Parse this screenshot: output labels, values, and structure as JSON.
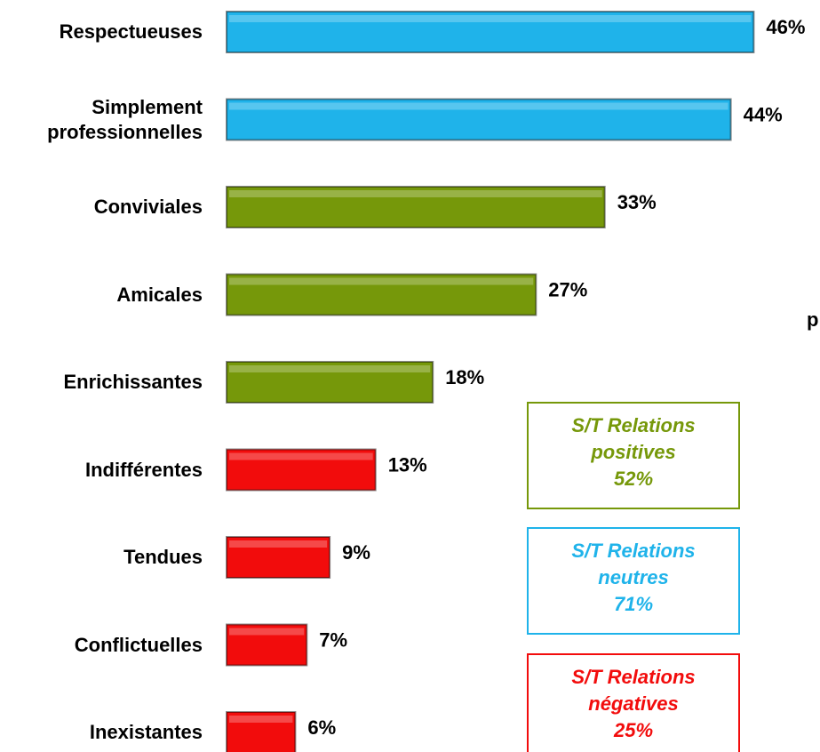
{
  "chart_data": {
    "type": "barh",
    "categories": [
      "Respectueuses",
      "Simplement\nprofessionnelles",
      "Conviviales",
      "Amicales",
      "Enrichissantes",
      "Indifférentes",
      "Tendues",
      "Conflictuelles",
      "Inexistantes"
    ],
    "values": [
      46,
      44,
      33,
      27,
      18,
      13,
      9,
      7,
      6
    ],
    "value_labels": [
      "46%",
      "44%",
      "33%",
      "27%",
      "18%",
      "13%",
      "9%",
      "7%",
      "6%"
    ],
    "colors": [
      "#1fb3ea",
      "#1fb3ea",
      "#76980a",
      "#76980a",
      "#76980a",
      "#f20c0c",
      "#f20c0c",
      "#f20c0c",
      "#f20c0c"
    ],
    "xlim": [
      0,
      50
    ],
    "annotations": [
      {
        "text": "S/T Relations\npositives\n52%",
        "color": "#76980a"
      },
      {
        "text": "S/T Relations\nneutres\n71%",
        "color": "#1fb3ea"
      },
      {
        "text": "S/T Relations\nnégatives\n25%",
        "color": "#f20c0c"
      },
      {
        "text": "p",
        "color": "#000000"
      }
    ]
  }
}
